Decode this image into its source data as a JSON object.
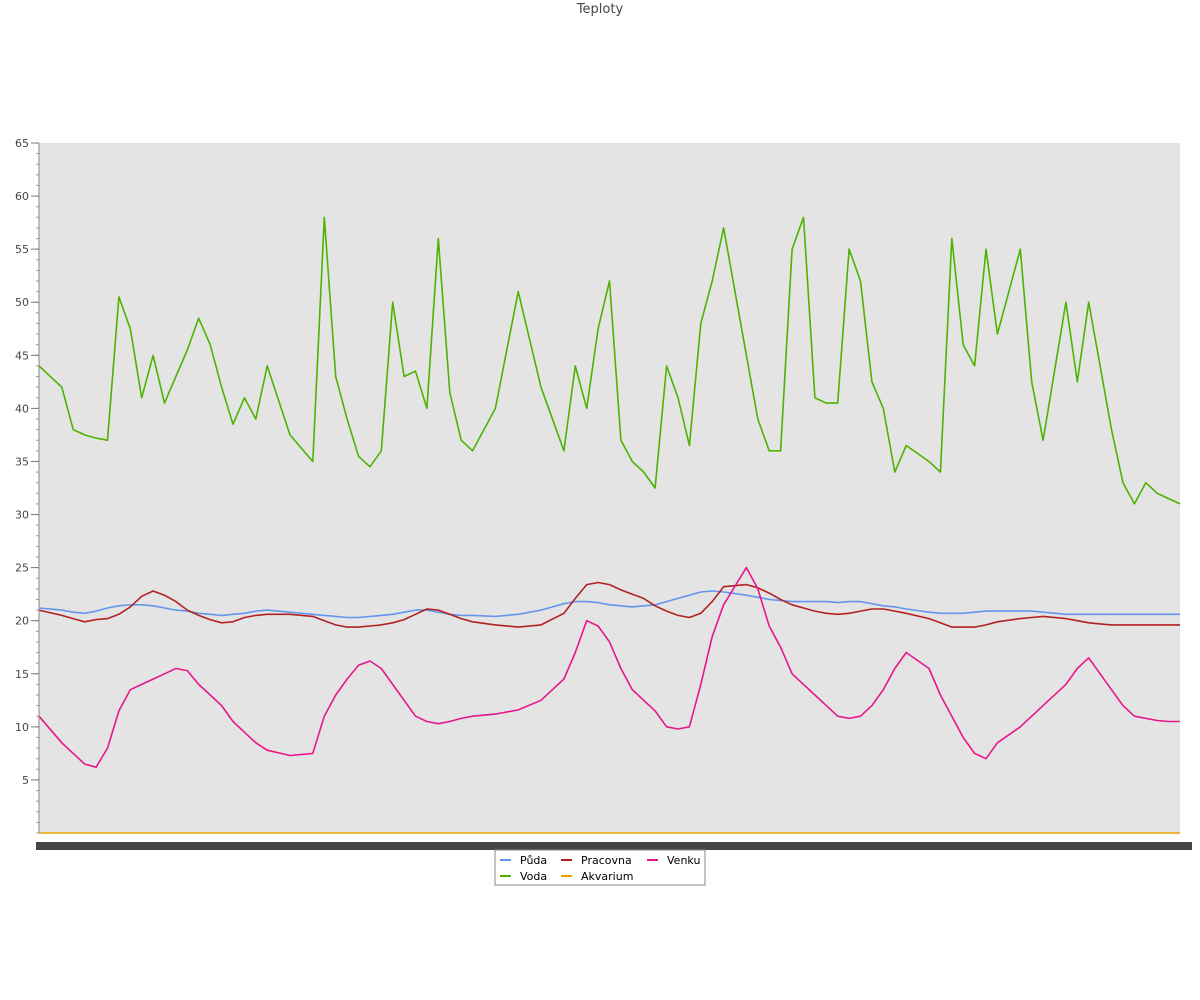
{
  "chart_data": {
    "type": "line",
    "title": "Teploty",
    "xlabel": "",
    "ylabel": "",
    "ylim": [
      0,
      65
    ],
    "yticks": [
      5,
      10,
      15,
      20,
      25,
      30,
      35,
      40,
      45,
      50,
      55,
      60,
      65
    ],
    "grid": false,
    "plot_background": "#e4e4e4",
    "x_tick_labels": "dense, illegible",
    "legend_position": "bottom-center",
    "x": [
      0,
      2,
      3,
      4,
      5,
      6,
      7,
      8,
      9,
      10,
      11,
      12,
      13,
      14,
      15,
      16,
      17,
      18,
      19,
      20,
      22,
      24,
      25,
      26,
      27,
      28,
      29,
      30,
      31,
      32,
      33,
      34,
      35,
      36,
      37,
      38,
      40,
      42,
      44,
      46,
      47,
      48,
      49,
      50,
      51,
      52,
      53,
      54,
      55,
      56,
      57,
      58,
      59,
      60,
      62,
      63,
      64,
      65,
      66,
      67,
      68,
      69,
      70,
      71,
      72,
      73,
      74,
      75,
      76,
      78,
      79,
      80,
      81,
      82,
      83,
      84,
      86,
      87,
      88,
      90,
      91,
      92,
      93,
      94,
      95,
      96,
      97,
      98,
      99,
      100
    ],
    "series": [
      {
        "name": "Půda",
        "color": "#6495ed",
        "values": [
          21.2,
          21.0,
          20.8,
          20.7,
          20.9,
          21.2,
          21.4,
          21.5,
          21.5,
          21.4,
          21.2,
          21.0,
          20.9,
          20.7,
          20.6,
          20.5,
          20.6,
          20.7,
          20.9,
          21.0,
          20.8,
          20.6,
          20.5,
          20.4,
          20.3,
          20.3,
          20.4,
          20.5,
          20.6,
          20.8,
          21.0,
          21.0,
          20.8,
          20.6,
          20.5,
          20.5,
          20.4,
          20.6,
          21.0,
          21.6,
          21.8,
          21.8,
          21.7,
          21.5,
          21.4,
          21.3,
          21.4,
          21.5,
          21.8,
          22.1,
          22.4,
          22.7,
          22.8,
          22.7,
          22.4,
          22.2,
          22.0,
          21.9,
          21.8,
          21.8,
          21.8,
          21.8,
          21.7,
          21.8,
          21.8,
          21.6,
          21.4,
          21.3,
          21.1,
          20.8,
          20.7,
          20.7,
          20.7,
          20.8,
          20.9,
          20.9,
          20.9,
          20.9,
          20.8,
          20.6,
          20.6,
          20.6,
          20.6,
          20.6,
          20.6,
          20.6,
          20.6,
          20.6,
          20.6,
          20.6
        ]
      },
      {
        "name": "Voda",
        "color": "#4db300",
        "values": [
          44.0,
          42.0,
          38.0,
          37.5,
          37.2,
          37.0,
          50.5,
          47.5,
          41.0,
          45.0,
          40.5,
          43.0,
          45.5,
          48.5,
          46.0,
          42.0,
          38.5,
          41.0,
          39.0,
          44.0,
          37.5,
          35.0,
          58.0,
          43.0,
          39.0,
          35.5,
          34.5,
          36.0,
          50.0,
          43.0,
          43.5,
          40.0,
          56.0,
          41.5,
          37.0,
          36.0,
          40.0,
          51.0,
          42.0,
          36.0,
          44.0,
          40.0,
          47.5,
          52.0,
          37.0,
          35.0,
          34.0,
          32.5,
          44.0,
          41.0,
          36.5,
          48.0,
          52.0,
          57.0,
          45.0,
          39.0,
          36.0,
          36.0,
          55.0,
          58.0,
          41.0,
          40.5,
          40.5,
          55.0,
          52.0,
          42.5,
          40.0,
          34.0,
          36.5,
          35.0,
          34.0,
          56.0,
          46.0,
          44.0,
          55.0,
          47.0,
          55.0,
          42.5,
          37.0,
          50.0,
          42.5,
          50.0,
          44.0,
          38.0,
          33.0,
          31.0,
          33.0,
          32.0,
          31.5,
          31.0
        ]
      },
      {
        "name": "Pracovna",
        "color": "#b22222",
        "values": [
          21.0,
          20.5,
          20.2,
          19.9,
          20.1,
          20.2,
          20.6,
          21.3,
          22.3,
          22.8,
          22.4,
          21.8,
          21.0,
          20.5,
          20.1,
          19.8,
          19.9,
          20.3,
          20.5,
          20.6,
          20.6,
          20.4,
          20.0,
          19.6,
          19.4,
          19.4,
          19.5,
          19.6,
          19.8,
          20.1,
          20.6,
          21.1,
          21.0,
          20.6,
          20.2,
          19.9,
          19.6,
          19.4,
          19.6,
          20.7,
          22.1,
          23.4,
          23.6,
          23.4,
          22.9,
          22.5,
          22.1,
          21.4,
          20.9,
          20.5,
          20.3,
          20.7,
          21.8,
          23.2,
          23.4,
          23.1,
          22.6,
          22.0,
          21.5,
          21.2,
          20.9,
          20.7,
          20.6,
          20.7,
          20.9,
          21.1,
          21.1,
          20.9,
          20.7,
          20.2,
          19.8,
          19.4,
          19.4,
          19.4,
          19.6,
          19.9,
          20.2,
          20.3,
          20.4,
          20.2,
          20.0,
          19.8,
          19.7,
          19.6,
          19.6,
          19.6,
          19.6,
          19.6,
          19.6,
          19.6
        ]
      },
      {
        "name": "Akvarium",
        "color": "#e6a300",
        "values": [
          0,
          0,
          0,
          0,
          0,
          0,
          0,
          0,
          0,
          0,
          0,
          0,
          0,
          0,
          0,
          0,
          0,
          0,
          0,
          0,
          0,
          0,
          0,
          0,
          0,
          0,
          0,
          0,
          0,
          0,
          0,
          0,
          0,
          0,
          0,
          0,
          0,
          0,
          0,
          0,
          0,
          0,
          0,
          0,
          0,
          0,
          0,
          0,
          0,
          0,
          0,
          0,
          0,
          0,
          0,
          0,
          0,
          0,
          0,
          0,
          0,
          0,
          0,
          0,
          0,
          0,
          0,
          0,
          0,
          0,
          0,
          0,
          0,
          0,
          0,
          0,
          0,
          0,
          0,
          0,
          0,
          0,
          0,
          0,
          0,
          0,
          0,
          0,
          0,
          0
        ]
      },
      {
        "name": "Venku",
        "color": "#e8168c",
        "values": [
          11.0,
          8.5,
          7.5,
          6.5,
          6.2,
          8.0,
          11.5,
          13.5,
          14.0,
          14.5,
          15.0,
          15.5,
          15.3,
          14.0,
          13.0,
          12.0,
          10.5,
          9.5,
          8.5,
          7.8,
          7.3,
          7.5,
          11.0,
          13.0,
          14.5,
          15.8,
          16.2,
          15.5,
          14.0,
          12.5,
          11.0,
          10.5,
          10.3,
          10.5,
          10.8,
          11.0,
          11.2,
          11.6,
          12.5,
          14.5,
          17.0,
          20.0,
          19.5,
          18.0,
          15.5,
          13.5,
          12.5,
          11.5,
          10.0,
          9.8,
          10.0,
          14.0,
          18.5,
          21.5,
          25.0,
          23.0,
          19.5,
          17.5,
          15.0,
          14.0,
          13.0,
          12.0,
          11.0,
          10.8,
          11.0,
          12.0,
          13.5,
          15.5,
          17.0,
          15.5,
          13.0,
          11.0,
          9.0,
          7.5,
          7.0,
          8.5,
          10.0,
          11.0,
          12.0,
          14.0,
          15.5,
          16.5,
          15.0,
          13.5,
          12.0,
          11.0,
          10.8,
          10.6,
          10.5,
          10.5
        ]
      }
    ]
  }
}
